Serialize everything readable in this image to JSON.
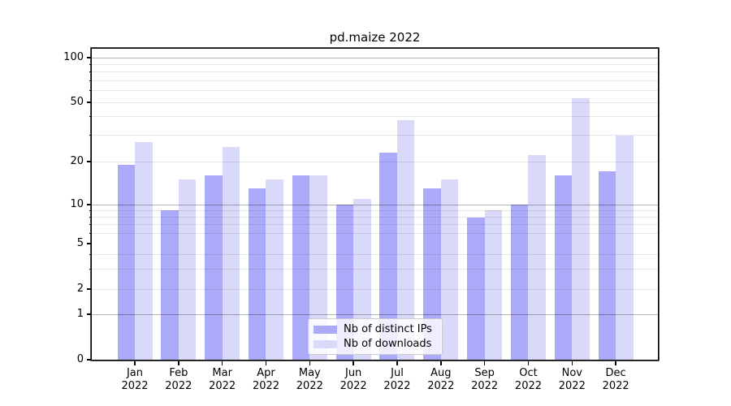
{
  "figure": {
    "title": "pd.maize 2022"
  },
  "chart_data": {
    "type": "bar",
    "title": "pd.maize 2022",
    "xlabel": "",
    "ylabel": "",
    "months": [
      "Jan",
      "Feb",
      "Mar",
      "Apr",
      "May",
      "Jun",
      "Jul",
      "Aug",
      "Sep",
      "Oct",
      "Nov",
      "Dec"
    ],
    "year": "2022",
    "series": [
      {
        "name": "Nb of distinct IPs",
        "color": "#aaaaf8",
        "values": [
          19,
          9,
          16,
          13,
          16,
          10,
          23,
          13,
          8,
          10,
          16,
          17
        ]
      },
      {
        "name": "Nb of downloads",
        "color": "#d9d9f9",
        "values": [
          27,
          15,
          25,
          15,
          16,
          11,
          38,
          15,
          9,
          22,
          53,
          30
        ]
      }
    ],
    "y_axis": {
      "scale": "symlog",
      "tick_values": [
        0,
        1,
        2,
        5,
        10,
        20,
        50,
        100
      ],
      "major_gridlines": [
        1,
        10,
        100
      ],
      "minor_gridlines": [
        2,
        3,
        4,
        6,
        7,
        8,
        9,
        20,
        30,
        40,
        50,
        60,
        70,
        80,
        90
      ],
      "ylim": [
        0,
        113
      ]
    },
    "legend": {
      "position": "bottom-center",
      "entries": [
        "Nb of distinct IPs",
        "Nb of downloads"
      ]
    },
    "grid": true
  }
}
